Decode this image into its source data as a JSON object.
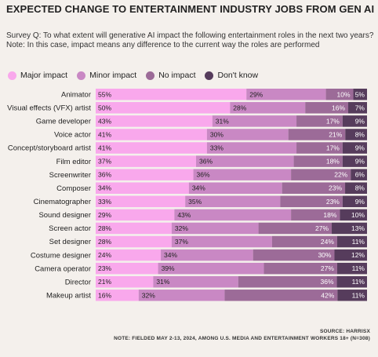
{
  "title": "EXPECTED CHANGE TO ENTERTAINMENT INDUSTRY JOBS FROM GEN AI",
  "subtitle": "Survey Q: To what extent will generative AI impact the following entertainment roles in the next two years? Note: In this case, impact means any difference to the current way the roles are performed",
  "source": "SOURCE: HARRISX",
  "note": "NOTE: FIELDED MAY 2-13, 2024, AMONG U.S. MEDIA AND ENTERTAINMENT WORKERS 18+ (N=308)",
  "colors": {
    "major": "#f9a8ec",
    "minor": "#c988c4",
    "none": "#9c6b98",
    "dontknow": "#563c5c"
  },
  "chart_data": {
    "type": "bar",
    "orientation": "horizontal",
    "stacked": true,
    "categories": [
      "Animator",
      "Visual effects (VFX) artist",
      "Game developer",
      "Voice actor",
      "Concept/storyboard artist",
      "Film editor",
      "Screenwriter",
      "Composer",
      "Cinematographer",
      "Sound designer",
      "Screen actor",
      "Set designer",
      "Costume designer",
      "Camera operator",
      "Director",
      "Makeup artist"
    ],
    "series": [
      {
        "name": "Major impact",
        "color": "#f9a8ec",
        "values": [
          55,
          50,
          43,
          41,
          41,
          37,
          36,
          34,
          33,
          29,
          28,
          28,
          24,
          23,
          21,
          16
        ]
      },
      {
        "name": "Minor impact",
        "color": "#c988c4",
        "values": [
          29,
          28,
          31,
          30,
          33,
          36,
          36,
          34,
          35,
          43,
          32,
          37,
          34,
          39,
          31,
          32
        ]
      },
      {
        "name": "No impact",
        "color": "#9c6b98",
        "values": [
          10,
          16,
          17,
          21,
          17,
          18,
          22,
          23,
          23,
          18,
          27,
          24,
          30,
          27,
          36,
          42
        ]
      },
      {
        "name": "Don't know",
        "color": "#563c5c",
        "values": [
          5,
          7,
          9,
          8,
          9,
          9,
          6,
          8,
          9,
          10,
          13,
          11,
          12,
          11,
          11,
          11
        ]
      }
    ],
    "value_suffix": "%",
    "xlim": [
      0,
      100
    ],
    "legend_position": "top-left",
    "grid": false
  }
}
